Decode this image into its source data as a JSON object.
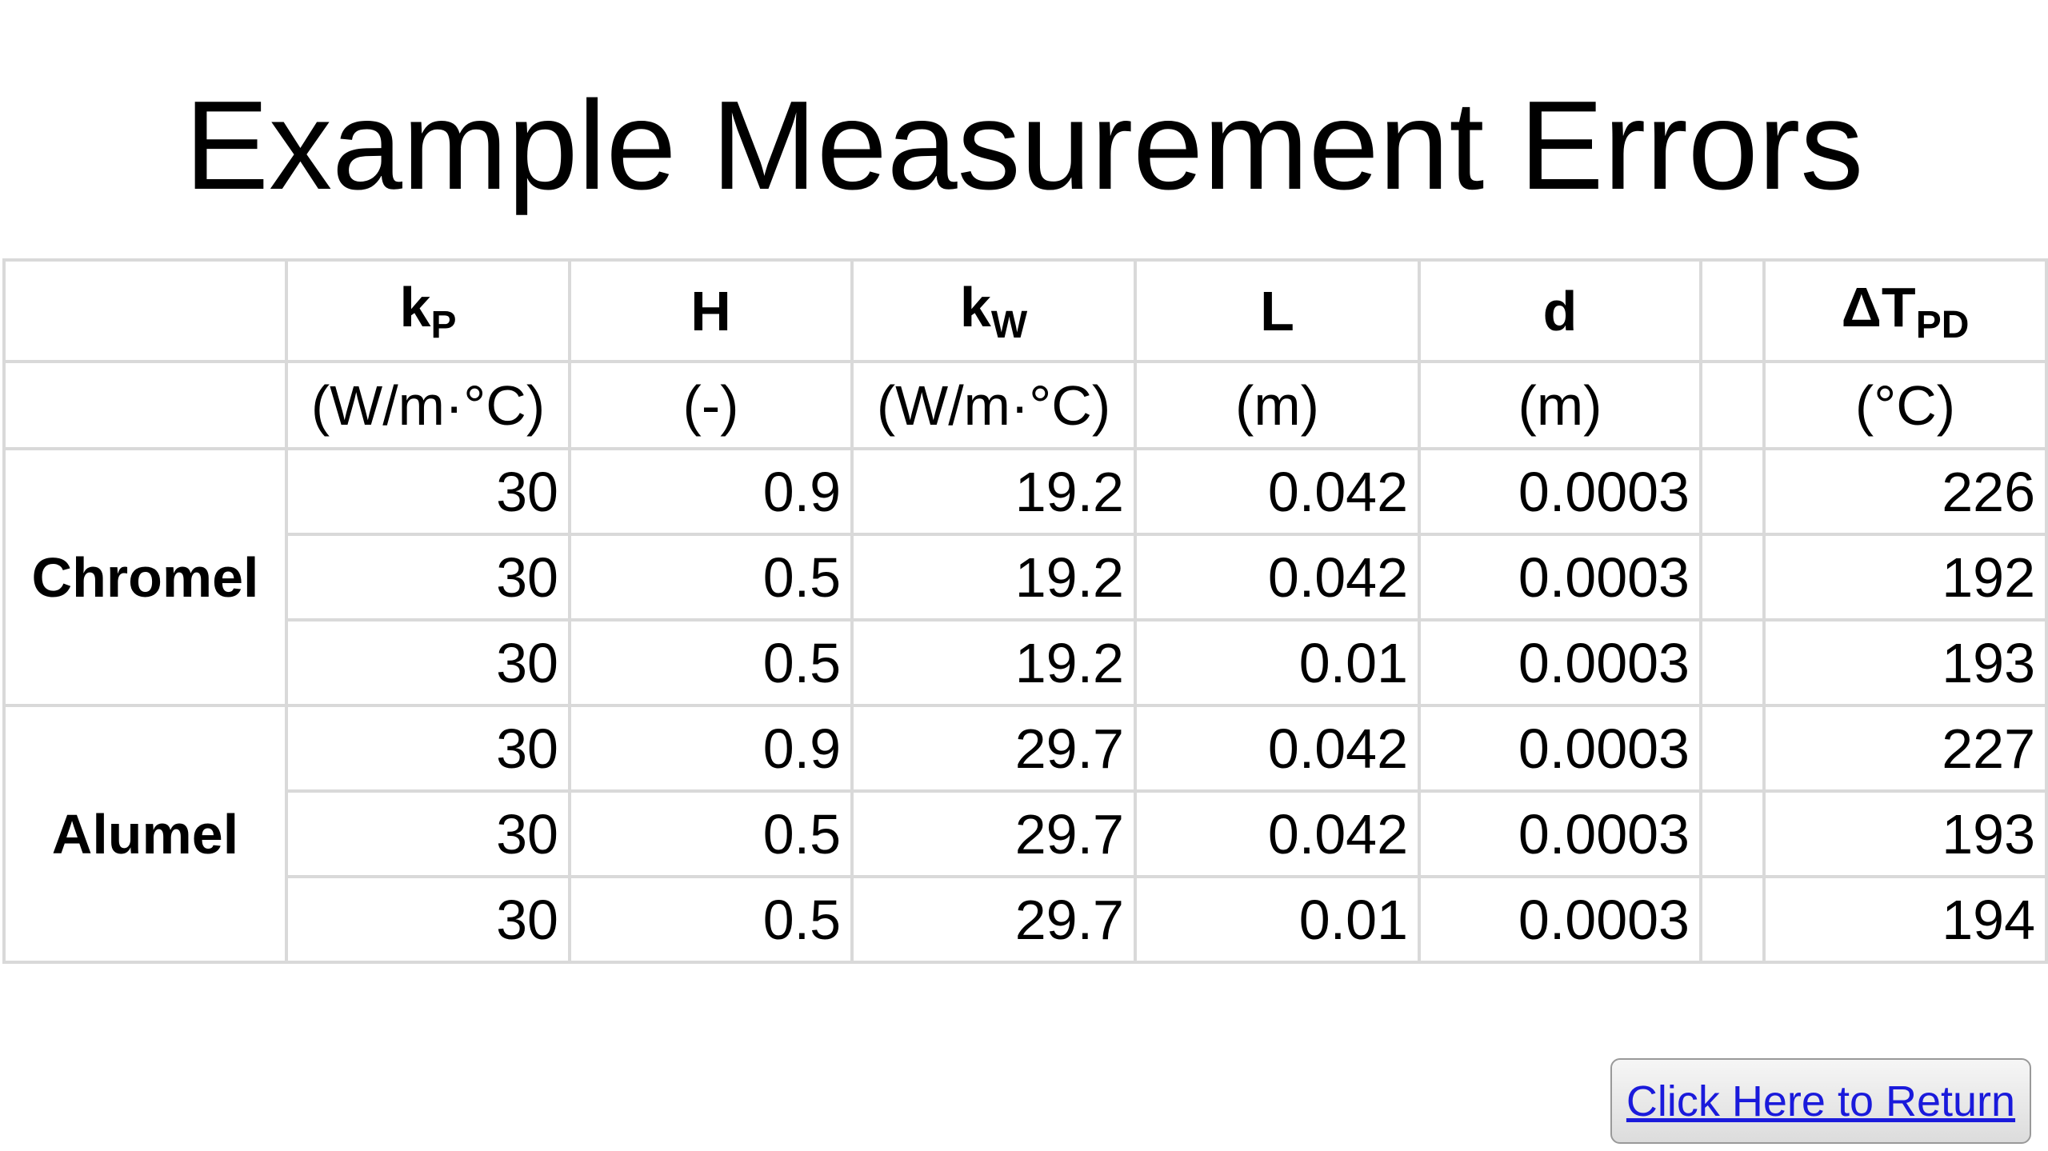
{
  "title": "Example Measurement Errors",
  "table": {
    "headers": [
      {
        "symbol": "k",
        "subscript": "P",
        "unit": "(W/m·°C)"
      },
      {
        "symbol": "H",
        "unit": "(-)"
      },
      {
        "symbol": "k",
        "subscript": "W",
        "unit": "(W/m·°C)"
      },
      {
        "symbol": "L",
        "unit": "(m)"
      },
      {
        "symbol": "d",
        "unit": "(m)"
      },
      {
        "symbol": "ΔT",
        "subscript": "PD",
        "unit": "(°C)"
      }
    ],
    "groups": [
      {
        "label": "Chromel",
        "rows": [
          [
            30,
            0.9,
            19.2,
            0.042,
            0.0003,
            226
          ],
          [
            30,
            0.5,
            19.2,
            0.042,
            0.0003,
            192
          ],
          [
            30,
            0.5,
            19.2,
            0.01,
            0.0003,
            193
          ]
        ]
      },
      {
        "label": "Alumel",
        "rows": [
          [
            30,
            0.9,
            29.7,
            0.042,
            0.0003,
            227
          ],
          [
            30,
            0.5,
            29.7,
            0.042,
            0.0003,
            193
          ],
          [
            30,
            0.5,
            29.7,
            0.01,
            0.0003,
            194
          ]
        ]
      }
    ]
  },
  "button": {
    "label": "Click Here to Return"
  }
}
